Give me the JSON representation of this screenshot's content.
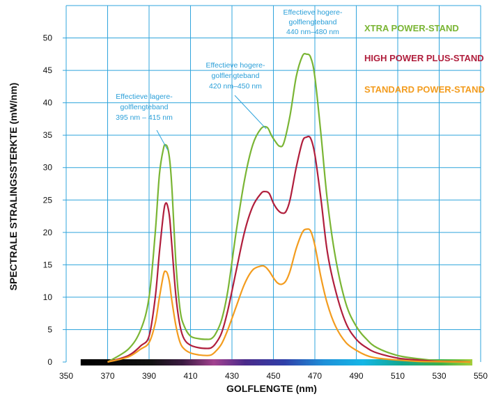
{
  "chart_data": {
    "type": "line",
    "xlabel": "GOLFLENGTE (nm)",
    "ylabel": "SPECTRALE STRALINGSSTERKTE (mW/nm)",
    "xlim": [
      350,
      550
    ],
    "ylim": [
      0,
      55
    ],
    "x_ticks": [
      "350",
      "370",
      "390",
      "410",
      "430",
      "450",
      "470",
      "490",
      "510",
      "530",
      "550"
    ],
    "y_ticks": [
      "0",
      "5",
      "10",
      "15",
      "20",
      "25",
      "30",
      "35",
      "40",
      "45",
      "50"
    ],
    "grid": true,
    "legend_position": "top-right",
    "series": [
      {
        "name": "XTRA POWER-STAND",
        "color": "#7ab534",
        "x": [
          370,
          380,
          386,
          390,
          393,
          395,
          397,
          398,
          399,
          400,
          401,
          403,
          405,
          407,
          410,
          414,
          418,
          420,
          422,
          425,
          428,
          432,
          436,
          440,
          444,
          447,
          449,
          451,
          453,
          455,
          458,
          461,
          464,
          466,
          468,
          470,
          473,
          476,
          480,
          485,
          490,
          495,
          500,
          510,
          520,
          530,
          540,
          545
        ],
        "y": [
          0,
          2,
          5,
          10,
          20,
          29,
          33,
          33.5,
          33,
          31,
          27,
          15,
          8,
          5.5,
          4,
          3.6,
          3.5,
          3.6,
          4.3,
          6.5,
          11,
          20,
          28,
          33.5,
          36,
          36.2,
          35,
          34,
          33.3,
          33.8,
          38,
          44,
          47.2,
          47.5,
          47,
          44,
          35,
          25,
          16,
          9,
          5.5,
          3.5,
          2.2,
          1,
          0.5,
          0.2,
          0.1,
          0
        ]
      },
      {
        "name": "HIGH POWER PLUS-STAND",
        "color": "#b01e3c",
        "x": [
          370,
          380,
          386,
          390,
          393,
          395,
          397,
          398,
          399,
          400,
          401,
          403,
          405,
          407,
          410,
          414,
          418,
          420,
          422,
          425,
          428,
          432,
          436,
          440,
          444,
          446,
          448,
          450,
          452,
          454,
          456,
          458,
          461,
          464,
          466,
          468,
          470,
          473,
          476,
          480,
          485,
          490,
          495,
          500,
          510,
          520,
          530,
          540,
          545
        ],
        "y": [
          0,
          1,
          2.5,
          4,
          10,
          17,
          23,
          24.5,
          24,
          22,
          18,
          10,
          5.5,
          3.5,
          2.6,
          2.2,
          2.1,
          2.2,
          2.8,
          4.5,
          8,
          14,
          20,
          24,
          26,
          26.3,
          26,
          24.5,
          23.5,
          23,
          23.2,
          25,
          30,
          34,
          34.7,
          34.5,
          32,
          25,
          17,
          11,
          6,
          3.5,
          2.2,
          1.4,
          0.6,
          0.3,
          0.1,
          0.05,
          0
        ]
      },
      {
        "name": "STANDARD POWER-STAND",
        "color": "#f39c1e",
        "x": [
          370,
          380,
          386,
          390,
          393,
          395,
          397,
          398,
          399,
          400,
          401,
          403,
          405,
          407,
          410,
          414,
          418,
          420,
          422,
          425,
          428,
          432,
          436,
          440,
          444,
          446,
          448,
          450,
          452,
          454,
          456,
          458,
          461,
          464,
          466,
          468,
          470,
          473,
          476,
          480,
          485,
          490,
          495,
          500,
          510,
          520,
          530,
          540,
          545
        ],
        "y": [
          0,
          0.8,
          2,
          3,
          6,
          10,
          13.5,
          14,
          13.5,
          12,
          9.5,
          5.5,
          3,
          2,
          1.4,
          1.1,
          1,
          1.1,
          1.6,
          2.8,
          5,
          8.5,
          12,
          14.2,
          14.8,
          14.7,
          14,
          13,
          12.2,
          12,
          12.5,
          14,
          17.5,
          20,
          20.5,
          20.2,
          18,
          13,
          9,
          5.5,
          3,
          1.8,
          1,
          0.6,
          0.3,
          0.1,
          0.05,
          0.02,
          0
        ]
      }
    ],
    "annotations": [
      {
        "lines": [
          "Effectieve lagere-",
          "golflengteband",
          "395 nm – 415 nm"
        ]
      },
      {
        "lines": [
          "Effectieve hogere-",
          "golflengteband",
          "420 nm–450 nm"
        ]
      },
      {
        "lines": [
          "Effectieve hogere-",
          "golflengteband",
          "440 nm–480 nm"
        ]
      }
    ]
  }
}
